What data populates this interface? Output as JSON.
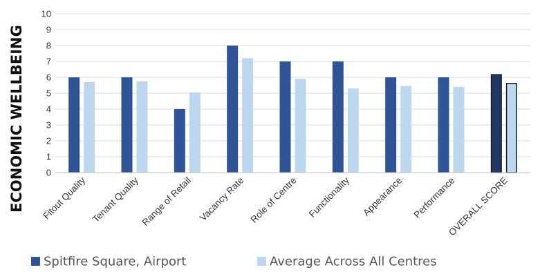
{
  "chart_data": {
    "type": "bar",
    "title": "",
    "ylabel": "ECONOMIC WELLBEING",
    "xlabel": "",
    "ylim": [
      0,
      10
    ],
    "yticks": [
      0,
      1,
      2,
      3,
      4,
      5,
      6,
      7,
      8,
      9,
      10
    ],
    "grid": true,
    "legend_position": "bottom",
    "categories": [
      "Fitout Quality",
      "Tenant Quality",
      "Range of Retail",
      "Vacancy Rate",
      "Role of Centre",
      "Functionality",
      "Appearance",
      "Performance",
      "OVERALL SCORE"
    ],
    "series": [
      {
        "name": "Spitfire Square, Airport",
        "color": "#2f5597",
        "values": [
          6,
          6,
          4,
          8,
          7,
          7,
          6,
          6,
          6.2
        ]
      },
      {
        "name": "Average Across All Centres",
        "color": "#bdd7ee",
        "values": [
          5.7,
          5.75,
          5.05,
          7.2,
          5.9,
          5.3,
          5.45,
          5.4,
          5.65
        ]
      }
    ],
    "highlight_last_category": true,
    "highlight_outline_color": "#1a1a1a",
    "highlight_dark_color": "#203864"
  }
}
